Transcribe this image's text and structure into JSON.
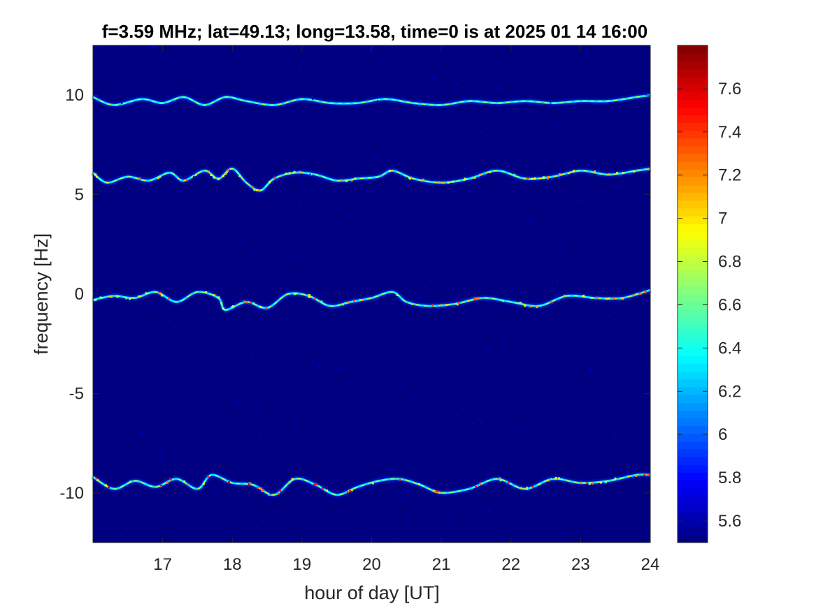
{
  "chart_data": {
    "type": "heatmap",
    "title": "f=3.59 MHz;  lat=49.13; long=13.58, time=0 is at 2025 01 14 16:00",
    "xlabel": "hour of day [UT]",
    "ylabel": "frequency [Hz]",
    "xlim": [
      16,
      24
    ],
    "ylim": [
      -12.5,
      12.5
    ],
    "xticks": [
      17,
      18,
      19,
      20,
      21,
      22,
      23,
      24
    ],
    "xtick_labels": [
      "17",
      "18",
      "19",
      "20",
      "21",
      "22",
      "23",
      "24"
    ],
    "yticks": [
      10,
      5,
      0,
      -5,
      -10
    ],
    "ytick_labels": [
      "10",
      "5",
      "0",
      "-5",
      "-10"
    ],
    "colorbar": {
      "clim": [
        5.5,
        7.8
      ],
      "colormap": "jet",
      "ticks": [
        5.6,
        5.8,
        6,
        6.2,
        6.4,
        6.6,
        6.8,
        7,
        7.2,
        7.4,
        7.6
      ],
      "tick_labels": [
        "5.6",
        "5.8",
        "6",
        "6.2",
        "6.4",
        "6.6",
        "6.8",
        "7",
        "7.2",
        "7.4",
        "7.6"
      ]
    },
    "background_level": 5.5,
    "traces": [
      {
        "label": "trace near +10 Hz",
        "peak_level": 6.3,
        "points": [
          [
            16.0,
            9.9
          ],
          [
            16.3,
            9.5
          ],
          [
            16.7,
            9.8
          ],
          [
            17.0,
            9.6
          ],
          [
            17.3,
            9.9
          ],
          [
            17.6,
            9.5
          ],
          [
            17.9,
            9.9
          ],
          [
            18.2,
            9.7
          ],
          [
            18.6,
            9.5
          ],
          [
            19.0,
            9.8
          ],
          [
            19.4,
            9.6
          ],
          [
            19.8,
            9.6
          ],
          [
            20.2,
            9.8
          ],
          [
            20.6,
            9.6
          ],
          [
            21.0,
            9.5
          ],
          [
            21.4,
            9.7
          ],
          [
            21.8,
            9.6
          ],
          [
            22.2,
            9.7
          ],
          [
            22.6,
            9.6
          ],
          [
            23.0,
            9.7
          ],
          [
            23.4,
            9.7
          ],
          [
            23.8,
            9.9
          ],
          [
            24.0,
            10.0
          ]
        ]
      },
      {
        "label": "trace near +6 Hz",
        "peak_level": 7.4,
        "points": [
          [
            16.0,
            6.1
          ],
          [
            16.2,
            5.6
          ],
          [
            16.5,
            5.9
          ],
          [
            16.8,
            5.7
          ],
          [
            17.1,
            6.1
          ],
          [
            17.3,
            5.7
          ],
          [
            17.6,
            6.2
          ],
          [
            17.8,
            5.8
          ],
          [
            18.0,
            6.3
          ],
          [
            18.2,
            5.6
          ],
          [
            18.4,
            5.2
          ],
          [
            18.6,
            5.8
          ],
          [
            18.9,
            6.1
          ],
          [
            19.2,
            6.0
          ],
          [
            19.5,
            5.7
          ],
          [
            19.8,
            5.8
          ],
          [
            20.1,
            5.9
          ],
          [
            20.3,
            6.2
          ],
          [
            20.6,
            5.8
          ],
          [
            21.0,
            5.6
          ],
          [
            21.4,
            5.8
          ],
          [
            21.8,
            6.2
          ],
          [
            22.2,
            5.8
          ],
          [
            22.6,
            5.9
          ],
          [
            23.0,
            6.2
          ],
          [
            23.4,
            6.0
          ],
          [
            23.8,
            6.2
          ],
          [
            24.0,
            6.3
          ]
        ]
      },
      {
        "label": "trace near 0 Hz",
        "peak_level": 7.5,
        "points": [
          [
            16.0,
            -0.3
          ],
          [
            16.3,
            -0.1
          ],
          [
            16.6,
            -0.2
          ],
          [
            16.9,
            0.1
          ],
          [
            17.2,
            -0.4
          ],
          [
            17.5,
            0.1
          ],
          [
            17.8,
            -0.2
          ],
          [
            17.9,
            -0.8
          ],
          [
            18.2,
            -0.4
          ],
          [
            18.5,
            -0.7
          ],
          [
            18.8,
            0.0
          ],
          [
            19.1,
            -0.1
          ],
          [
            19.4,
            -0.6
          ],
          [
            19.7,
            -0.4
          ],
          [
            20.0,
            -0.2
          ],
          [
            20.3,
            0.1
          ],
          [
            20.5,
            -0.4
          ],
          [
            20.8,
            -0.6
          ],
          [
            21.2,
            -0.5
          ],
          [
            21.6,
            -0.2
          ],
          [
            22.0,
            -0.4
          ],
          [
            22.4,
            -0.6
          ],
          [
            22.8,
            -0.1
          ],
          [
            23.2,
            -0.2
          ],
          [
            23.6,
            -0.2
          ],
          [
            24.0,
            0.2
          ]
        ]
      },
      {
        "label": "trace near -10 Hz",
        "peak_level": 7.6,
        "points": [
          [
            16.0,
            -9.2
          ],
          [
            16.3,
            -9.8
          ],
          [
            16.6,
            -9.4
          ],
          [
            16.9,
            -9.7
          ],
          [
            17.2,
            -9.3
          ],
          [
            17.5,
            -9.8
          ],
          [
            17.7,
            -9.1
          ],
          [
            18.0,
            -9.5
          ],
          [
            18.3,
            -9.6
          ],
          [
            18.6,
            -10.1
          ],
          [
            18.9,
            -9.3
          ],
          [
            19.2,
            -9.6
          ],
          [
            19.5,
            -10.1
          ],
          [
            19.8,
            -9.7
          ],
          [
            20.1,
            -9.4
          ],
          [
            20.4,
            -9.3
          ],
          [
            20.7,
            -9.6
          ],
          [
            21.0,
            -10.0
          ],
          [
            21.4,
            -9.8
          ],
          [
            21.8,
            -9.3
          ],
          [
            22.2,
            -9.8
          ],
          [
            22.6,
            -9.3
          ],
          [
            23.0,
            -9.5
          ],
          [
            23.4,
            -9.4
          ],
          [
            23.8,
            -9.1
          ],
          [
            24.0,
            -9.1
          ]
        ]
      }
    ]
  }
}
